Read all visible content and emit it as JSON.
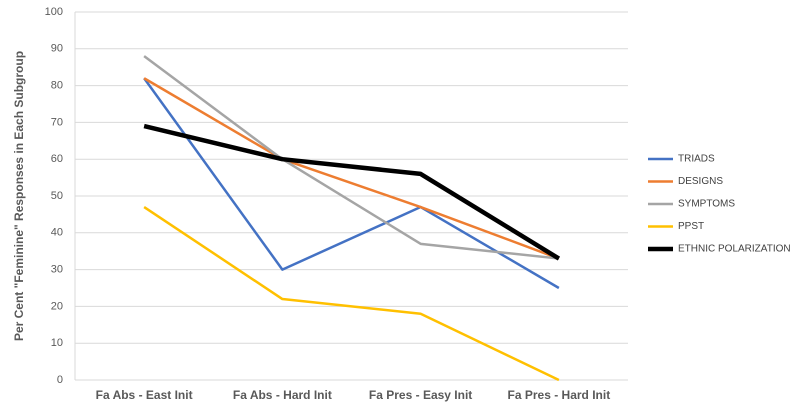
{
  "chart_data": {
    "type": "line",
    "y_label": "Per Cent \"Feminine\" Responses in Each Subgroup",
    "categories": [
      "Fa Abs - East Init",
      "Fa Abs - Hard Init",
      "Fa Pres - Easy Init",
      "Fa Pres - Hard Init"
    ],
    "series": [
      {
        "name": "TRIADS",
        "color": "#4472c4",
        "line_width": 2.5,
        "values": [
          82,
          30,
          47,
          25
        ]
      },
      {
        "name": "DESIGNS",
        "color": "#ed7d31",
        "line_width": 2.5,
        "values": [
          82,
          60,
          47,
          33
        ]
      },
      {
        "name": "SYMPTOMS",
        "color": "#a5a5a5",
        "line_width": 2.5,
        "values": [
          88,
          60,
          37,
          33
        ]
      },
      {
        "name": "PPST",
        "color": "#ffc000",
        "line_width": 2.5,
        "values": [
          47,
          22,
          18,
          0
        ]
      },
      {
        "name": "ETHNIC POLARIZATION",
        "color": "#000000",
        "line_width": 4.5,
        "values": [
          69,
          60,
          56,
          33
        ]
      }
    ],
    "ylim": [
      0,
      100
    ],
    "yticks": [
      0,
      10,
      20,
      30,
      40,
      50,
      60,
      70,
      80,
      90,
      100
    ],
    "grid": true,
    "legend": "right"
  }
}
